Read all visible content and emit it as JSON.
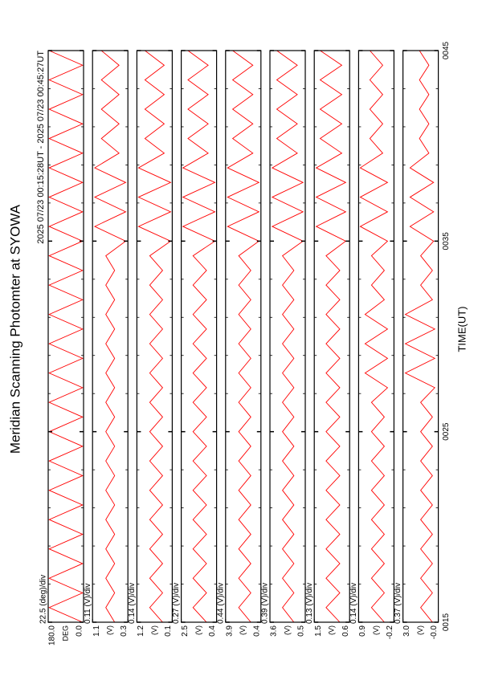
{
  "chart_data": {
    "type": "line",
    "title": "Meridian Scanning Photomter at SYOWA",
    "subtitle": "2025 07/23 00:15:28UT - 2025 07/23 00:45:27UT",
    "x_label": "TIME(UT)",
    "xticks": [
      "0015",
      "0025",
      "0035",
      "0045"
    ],
    "color": "#ff0000",
    "panels": [
      {
        "scale_label": "22.5 (deg)/div",
        "unit": "DEG",
        "ylim": [
          0,
          180
        ],
        "yticks": [
          {
            "value": 0,
            "label": "0.0"
          },
          {
            "value": 180,
            "label": "180.0"
          }
        ],
        "values": [
          5,
          175,
          5,
          175,
          5,
          175,
          5,
          175,
          5,
          175,
          5,
          175,
          5,
          175,
          5,
          175,
          5,
          175,
          5,
          175,
          5,
          175,
          5,
          175,
          5,
          175,
          5,
          175,
          5,
          175,
          5,
          175,
          5,
          175,
          5,
          175,
          5,
          175,
          5,
          175
        ]
      },
      {
        "scale_label": "0.11 (V)/div",
        "unit": "(V)",
        "ylim": [
          0.3,
          1.1
        ],
        "yticks": [
          0.3,
          1.1
        ],
        "values": [
          0.6,
          0.8,
          0.6,
          0.8,
          0.6,
          0.8,
          0.6,
          0.8,
          0.6,
          0.8,
          0.6,
          0.8,
          0.6,
          0.8,
          0.6,
          0.8,
          0.6,
          0.8,
          0.6,
          0.8,
          0.6,
          0.8,
          0.6,
          0.8,
          0.6,
          0.8,
          0.35,
          1.05,
          0.35,
          1.05,
          0.35,
          1.05,
          0.5,
          0.9,
          0.5,
          0.9,
          0.5,
          0.9,
          0.5,
          0.9
        ]
      },
      {
        "scale_label": "0.14 (V)/div",
        "unit": "(V)",
        "ylim": [
          0.1,
          1.2
        ],
        "yticks": [
          0.1,
          1.2
        ],
        "values": [
          0.4,
          0.8,
          0.4,
          0.8,
          0.4,
          0.8,
          0.4,
          0.8,
          0.4,
          0.8,
          0.4,
          0.8,
          0.4,
          0.8,
          0.4,
          0.8,
          0.4,
          0.8,
          0.4,
          0.8,
          0.4,
          0.8,
          0.4,
          0.8,
          0.4,
          0.8,
          0.15,
          1.15,
          0.15,
          1.15,
          0.15,
          1.15,
          0.35,
          0.95,
          0.35,
          0.95,
          0.35,
          0.95,
          0.35,
          0.95
        ]
      },
      {
        "scale_label": "0.27 (V)/div",
        "unit": "(V)",
        "ylim": [
          0.4,
          2.5
        ],
        "yticks": [
          0.4,
          2.5
        ],
        "values": [
          1.0,
          1.8,
          1.0,
          1.8,
          1.0,
          1.8,
          1.0,
          1.8,
          1.0,
          1.8,
          1.0,
          1.8,
          1.0,
          1.8,
          1.0,
          1.8,
          1.0,
          1.8,
          1.0,
          1.8,
          1.0,
          1.8,
          1.0,
          1.8,
          1.0,
          1.8,
          0.5,
          2.4,
          0.5,
          2.4,
          0.5,
          2.4,
          0.9,
          2.1,
          0.9,
          2.1,
          0.9,
          2.1,
          0.9,
          2.1
        ]
      },
      {
        "scale_label": "0.44 (V)/div",
        "unit": "(V)",
        "ylim": [
          0.4,
          3.9
        ],
        "yticks": [
          0.4,
          3.9
        ],
        "values": [
          1.4,
          2.6,
          1.4,
          2.6,
          1.4,
          2.6,
          1.4,
          2.6,
          1.4,
          2.6,
          1.4,
          2.6,
          1.4,
          2.6,
          1.4,
          2.6,
          1.4,
          2.6,
          1.4,
          2.6,
          1.4,
          2.6,
          1.4,
          2.6,
          1.4,
          2.6,
          0.6,
          3.7,
          0.6,
          3.7,
          0.6,
          3.7,
          1.2,
          3.2,
          1.2,
          3.2,
          1.2,
          3.2,
          1.2,
          3.2
        ]
      },
      {
        "scale_label": "0.39 (V)/div",
        "unit": "(V)",
        "ylim": [
          0.5,
          3.6
        ],
        "yticks": [
          0.5,
          3.6
        ],
        "values": [
          1.5,
          2.5,
          1.5,
          2.5,
          1.5,
          2.5,
          1.5,
          2.5,
          1.5,
          2.5,
          1.5,
          2.5,
          1.5,
          2.5,
          1.5,
          2.5,
          1.5,
          2.5,
          1.5,
          2.5,
          1.5,
          2.5,
          1.5,
          2.5,
          1.5,
          2.5,
          0.7,
          3.4,
          0.7,
          3.4,
          0.7,
          3.4,
          1.2,
          3.0,
          1.2,
          3.0,
          1.2,
          3.0,
          1.2,
          3.0
        ]
      },
      {
        "scale_label": "0.13 (V)/div",
        "unit": "(V)",
        "ylim": [
          0.6,
          1.5
        ],
        "yticks": [
          0.6,
          1.5
        ],
        "values": [
          0.85,
          1.2,
          0.85,
          1.2,
          0.85,
          1.2,
          0.85,
          1.2,
          0.85,
          1.2,
          0.85,
          1.2,
          0.85,
          1.2,
          0.85,
          1.2,
          0.85,
          1.2,
          0.85,
          1.2,
          0.85,
          1.2,
          0.85,
          1.2,
          0.85,
          1.2,
          0.7,
          1.45,
          0.7,
          1.45,
          0.7,
          1.45,
          0.8,
          1.35,
          0.8,
          1.35,
          0.8,
          1.35,
          0.8,
          1.35
        ]
      },
      {
        "scale_label": "0.14 (V)/div",
        "unit": "(V)",
        "ylim": [
          -0.2,
          0.9
        ],
        "yticks": [
          -0.2,
          0.9
        ],
        "values": [
          0.1,
          0.5,
          0.1,
          0.5,
          0.1,
          0.5,
          0.1,
          0.5,
          0.1,
          0.5,
          0.1,
          0.5,
          0.1,
          0.5,
          0.1,
          0.5,
          0.0,
          0.7,
          0.0,
          0.7,
          0.0,
          0.7,
          0.1,
          0.5,
          0.1,
          0.5,
          0.0,
          0.85,
          0.0,
          0.85,
          0.0,
          0.85,
          0.15,
          0.55,
          0.15,
          0.55,
          0.15,
          0.55,
          0.15,
          0.55
        ]
      },
      {
        "scale_label": "0.37 (V)/div",
        "unit": "(V)",
        "ylim": [
          0,
          3.0
        ],
        "yticks": [
          {
            "value": 0,
            "label": "-0.0"
          },
          {
            "value": 3.0,
            "label": "3.0"
          }
        ],
        "values": [
          0.5,
          1.5,
          0.5,
          1.5,
          0.5,
          1.5,
          0.5,
          1.5,
          0.5,
          1.5,
          0.5,
          1.5,
          0.5,
          1.5,
          0.5,
          1.5,
          0.3,
          2.8,
          0.3,
          2.8,
          0.3,
          2.8,
          0.5,
          1.5,
          0.5,
          1.5,
          0.4,
          2.4,
          0.4,
          2.4,
          0.4,
          2.4,
          0.8,
          1.6,
          0.8,
          1.6,
          0.8,
          1.6,
          0.8,
          1.6
        ]
      }
    ]
  }
}
